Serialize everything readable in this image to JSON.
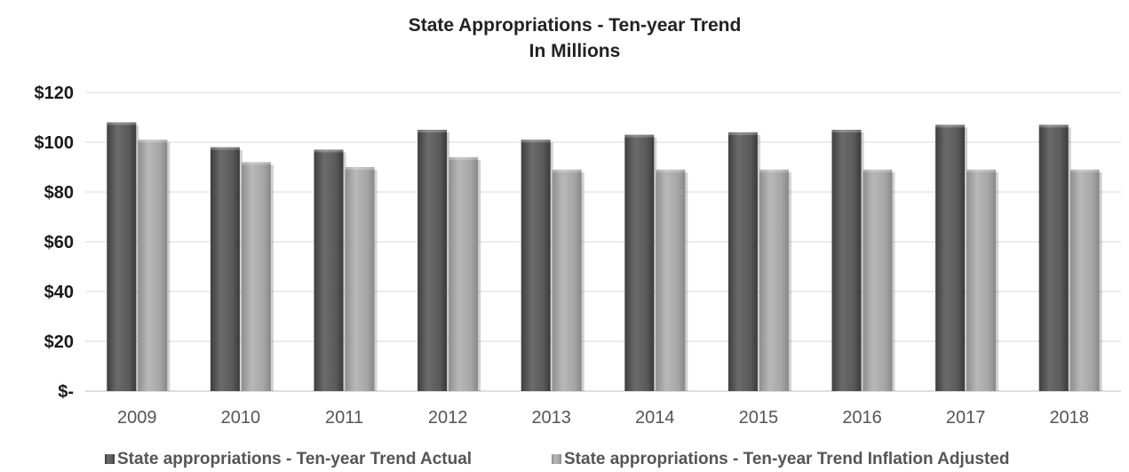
{
  "chart_data": {
    "type": "bar",
    "title": "State Appropriations - Ten-year Trend",
    "subtitle": "In Millions",
    "xlabel": "",
    "ylabel": "",
    "categories": [
      "2009",
      "2010",
      "2011",
      "2012",
      "2013",
      "2014",
      "2015",
      "2016",
      "2017",
      "2018"
    ],
    "series": [
      {
        "name": "State appropriations - Ten-year Trend Actual",
        "color": "#5f5f5f",
        "values": [
          108,
          98,
          97,
          105,
          101,
          103,
          104,
          105,
          107,
          107
        ]
      },
      {
        "name": "State appropriations - Ten-year Trend Inflation Adjusted",
        "color": "#a9a9a9",
        "values": [
          101,
          92,
          90,
          94,
          89,
          89,
          89,
          89,
          89,
          89
        ]
      }
    ],
    "ylim": [
      0,
      120
    ],
    "yticks": [
      0,
      20,
      40,
      60,
      80,
      100,
      120
    ],
    "ytick_labels": [
      "$-",
      "$20",
      "$40",
      "$60",
      "$80",
      "$100",
      "$120"
    ],
    "grid": true,
    "legend_position": "bottom"
  }
}
